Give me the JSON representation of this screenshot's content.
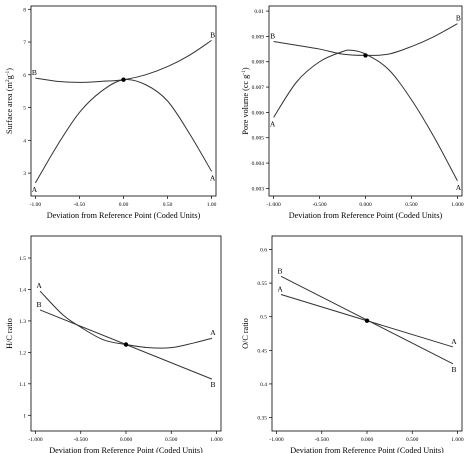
{
  "chart_data": [
    {
      "id": "surface-area",
      "type": "line",
      "xlabel": "Deviation from Reference Point (Coded Units)",
      "ylabel_parts": [
        "Surface area (m",
        "2",
        "g",
        "-1",
        ")"
      ],
      "xlim": [
        -1.05,
        1.05
      ],
      "ylim": [
        2.3,
        8.1
      ],
      "xticks": [
        -1,
        -0.5,
        0,
        0.5,
        1
      ],
      "xtick_labels": [
        "-1.00",
        "-0.50",
        "0.00",
        "0.50",
        "1.00"
      ],
      "yticks": [
        3,
        4,
        5,
        6,
        7,
        8
      ],
      "ytick_labels": [
        "3",
        "4",
        "5",
        "6",
        "7",
        "8"
      ],
      "series": [
        {
          "name": "A",
          "x": [
            -1,
            -0.75,
            -0.5,
            -0.25,
            0,
            0.25,
            0.5,
            0.75,
            1
          ],
          "y": [
            2.7,
            3.85,
            4.85,
            5.5,
            5.85,
            5.7,
            5.2,
            4.2,
            3.05
          ]
        },
        {
          "name": "B",
          "x": [
            -1,
            -0.75,
            -0.5,
            -0.25,
            0,
            0.25,
            0.5,
            0.75,
            1
          ],
          "y": [
            5.9,
            5.8,
            5.77,
            5.8,
            5.85,
            6.0,
            6.25,
            6.6,
            7.05
          ]
        }
      ],
      "reference_point": {
        "x": 0,
        "y": 5.85
      }
    },
    {
      "id": "pore-volume",
      "type": "line",
      "xlabel": "Deviation from Reference Point (Coded Units)",
      "ylabel_parts": [
        "Pore volume (cc g",
        "-1",
        ")"
      ],
      "xlim": [
        -1.05,
        1.05
      ],
      "ylim": [
        0.0027,
        0.0102
      ],
      "xticks": [
        -1,
        -0.5,
        0,
        0.5,
        1
      ],
      "xtick_labels": [
        "-1.000",
        "-0.500",
        "0.000",
        "0.500",
        "1.000"
      ],
      "yticks": [
        0.003,
        0.004,
        0.005,
        0.006,
        0.007,
        0.008,
        0.009,
        0.01
      ],
      "ytick_labels": [
        "0.003",
        "0.004",
        "0.005",
        "0.006",
        "0.007",
        "0.008",
        "0.009",
        "0.01"
      ],
      "series": [
        {
          "name": "A",
          "x": [
            -1,
            -0.75,
            -0.5,
            -0.25,
            -0.15,
            0,
            0.25,
            0.5,
            0.75,
            1
          ],
          "y": [
            0.0058,
            0.0072,
            0.008,
            0.0084,
            0.00845,
            0.0083,
            0.0077,
            0.0065,
            0.005,
            0.0033
          ]
        },
        {
          "name": "B",
          "x": [
            -1,
            -0.75,
            -0.5,
            -0.25,
            0,
            0.25,
            0.5,
            0.75,
            1
          ],
          "y": [
            0.0088,
            0.00865,
            0.0085,
            0.0083,
            0.00825,
            0.0083,
            0.0086,
            0.009,
            0.0095
          ]
        }
      ],
      "reference_point": {
        "x": 0,
        "y": 0.00825
      }
    },
    {
      "id": "hc-ratio",
      "type": "line",
      "xlabel": "Deviation from Reference Point (Coded Units)",
      "ylabel_parts": [
        "H/C ratio"
      ],
      "xlim": [
        -1.05,
        1.05
      ],
      "ylim": [
        0.95,
        1.57
      ],
      "xticks": [
        -1,
        -0.5,
        0,
        0.5,
        1
      ],
      "xtick_labels": [
        "-1.000",
        "-0.500",
        "0.000",
        "0.500",
        "1.000"
      ],
      "yticks": [
        1,
        1.1,
        1.2,
        1.3,
        1.4,
        1.5
      ],
      "ytick_labels": [
        "1",
        "1.1",
        "1.2",
        "1.3",
        "1.4",
        "1.5"
      ],
      "series": [
        {
          "name": "A",
          "x": [
            -0.95,
            -0.7,
            -0.5,
            -0.25,
            0,
            0.25,
            0.5,
            0.75,
            0.95
          ],
          "y": [
            1.395,
            1.32,
            1.28,
            1.24,
            1.225,
            1.215,
            1.215,
            1.23,
            1.245
          ]
        },
        {
          "name": "B",
          "x": [
            -0.95,
            0.95
          ],
          "y": [
            1.335,
            1.115
          ]
        }
      ],
      "reference_point": {
        "x": 0,
        "y": 1.225
      }
    },
    {
      "id": "oc-ratio",
      "type": "line",
      "xlabel": "Deviation from Reference Point (Coded Units)",
      "ylabel_parts": [
        "O/C ratio"
      ],
      "xlim": [
        -1.05,
        1.05
      ],
      "ylim": [
        0.33,
        0.62
      ],
      "xticks": [
        -1,
        -0.5,
        0,
        0.5,
        1
      ],
      "xtick_labels": [
        "-1.000",
        "-0.500",
        "0.000",
        "0.500",
        "1.000"
      ],
      "yticks": [
        0.35,
        0.4,
        0.45,
        0.5,
        0.55,
        0.6
      ],
      "ytick_labels": [
        "0.35",
        "0.4",
        "0.45",
        "0.5",
        "0.55",
        "0.6"
      ],
      "series": [
        {
          "name": "A",
          "x": [
            -0.95,
            0.95
          ],
          "y": [
            0.533,
            0.455
          ]
        },
        {
          "name": "B",
          "x": [
            -0.95,
            0.95
          ],
          "y": [
            0.56,
            0.43
          ]
        }
      ],
      "reference_point": {
        "x": 0,
        "y": 0.494
      }
    }
  ]
}
